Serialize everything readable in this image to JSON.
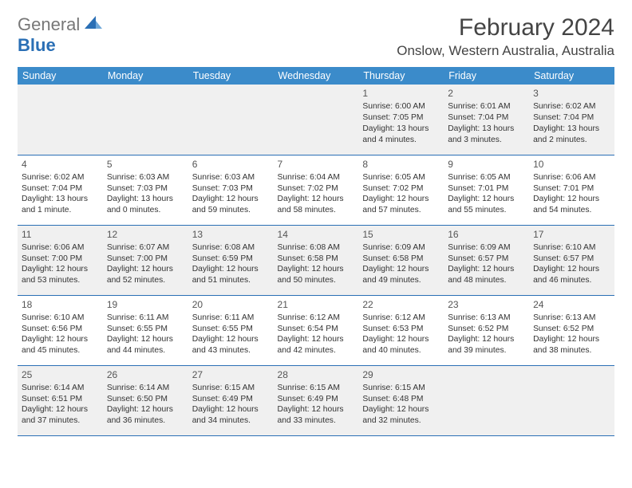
{
  "logo": {
    "gray_text": "General",
    "blue_text": "Blue"
  },
  "title": "February 2024",
  "location": "Onslow, Western Australia, Australia",
  "colors": {
    "header_bg": "#3b8bca",
    "header_text": "#ffffff",
    "row_odd_bg": "#f0f0f0",
    "row_even_bg": "#ffffff",
    "border": "#2a6fb5",
    "logo_blue": "#2a6fb5",
    "text": "#333333"
  },
  "day_headers": [
    "Sunday",
    "Monday",
    "Tuesday",
    "Wednesday",
    "Thursday",
    "Friday",
    "Saturday"
  ],
  "weeks": [
    [
      null,
      null,
      null,
      null,
      {
        "n": "1",
        "sr": "6:00 AM",
        "ss": "7:05 PM",
        "dl": "13 hours and 4 minutes."
      },
      {
        "n": "2",
        "sr": "6:01 AM",
        "ss": "7:04 PM",
        "dl": "13 hours and 3 minutes."
      },
      {
        "n": "3",
        "sr": "6:02 AM",
        "ss": "7:04 PM",
        "dl": "13 hours and 2 minutes."
      }
    ],
    [
      {
        "n": "4",
        "sr": "6:02 AM",
        "ss": "7:04 PM",
        "dl": "13 hours and 1 minute."
      },
      {
        "n": "5",
        "sr": "6:03 AM",
        "ss": "7:03 PM",
        "dl": "13 hours and 0 minutes."
      },
      {
        "n": "6",
        "sr": "6:03 AM",
        "ss": "7:03 PM",
        "dl": "12 hours and 59 minutes."
      },
      {
        "n": "7",
        "sr": "6:04 AM",
        "ss": "7:02 PM",
        "dl": "12 hours and 58 minutes."
      },
      {
        "n": "8",
        "sr": "6:05 AM",
        "ss": "7:02 PM",
        "dl": "12 hours and 57 minutes."
      },
      {
        "n": "9",
        "sr": "6:05 AM",
        "ss": "7:01 PM",
        "dl": "12 hours and 55 minutes."
      },
      {
        "n": "10",
        "sr": "6:06 AM",
        "ss": "7:01 PM",
        "dl": "12 hours and 54 minutes."
      }
    ],
    [
      {
        "n": "11",
        "sr": "6:06 AM",
        "ss": "7:00 PM",
        "dl": "12 hours and 53 minutes."
      },
      {
        "n": "12",
        "sr": "6:07 AM",
        "ss": "7:00 PM",
        "dl": "12 hours and 52 minutes."
      },
      {
        "n": "13",
        "sr": "6:08 AM",
        "ss": "6:59 PM",
        "dl": "12 hours and 51 minutes."
      },
      {
        "n": "14",
        "sr": "6:08 AM",
        "ss": "6:58 PM",
        "dl": "12 hours and 50 minutes."
      },
      {
        "n": "15",
        "sr": "6:09 AM",
        "ss": "6:58 PM",
        "dl": "12 hours and 49 minutes."
      },
      {
        "n": "16",
        "sr": "6:09 AM",
        "ss": "6:57 PM",
        "dl": "12 hours and 48 minutes."
      },
      {
        "n": "17",
        "sr": "6:10 AM",
        "ss": "6:57 PM",
        "dl": "12 hours and 46 minutes."
      }
    ],
    [
      {
        "n": "18",
        "sr": "6:10 AM",
        "ss": "6:56 PM",
        "dl": "12 hours and 45 minutes."
      },
      {
        "n": "19",
        "sr": "6:11 AM",
        "ss": "6:55 PM",
        "dl": "12 hours and 44 minutes."
      },
      {
        "n": "20",
        "sr": "6:11 AM",
        "ss": "6:55 PM",
        "dl": "12 hours and 43 minutes."
      },
      {
        "n": "21",
        "sr": "6:12 AM",
        "ss": "6:54 PM",
        "dl": "12 hours and 42 minutes."
      },
      {
        "n": "22",
        "sr": "6:12 AM",
        "ss": "6:53 PM",
        "dl": "12 hours and 40 minutes."
      },
      {
        "n": "23",
        "sr": "6:13 AM",
        "ss": "6:52 PM",
        "dl": "12 hours and 39 minutes."
      },
      {
        "n": "24",
        "sr": "6:13 AM",
        "ss": "6:52 PM",
        "dl": "12 hours and 38 minutes."
      }
    ],
    [
      {
        "n": "25",
        "sr": "6:14 AM",
        "ss": "6:51 PM",
        "dl": "12 hours and 37 minutes."
      },
      {
        "n": "26",
        "sr": "6:14 AM",
        "ss": "6:50 PM",
        "dl": "12 hours and 36 minutes."
      },
      {
        "n": "27",
        "sr": "6:15 AM",
        "ss": "6:49 PM",
        "dl": "12 hours and 34 minutes."
      },
      {
        "n": "28",
        "sr": "6:15 AM",
        "ss": "6:49 PM",
        "dl": "12 hours and 33 minutes."
      },
      {
        "n": "29",
        "sr": "6:15 AM",
        "ss": "6:48 PM",
        "dl": "12 hours and 32 minutes."
      },
      null,
      null
    ]
  ],
  "labels": {
    "sunrise": "Sunrise:",
    "sunset": "Sunset:",
    "daylight": "Daylight:"
  }
}
